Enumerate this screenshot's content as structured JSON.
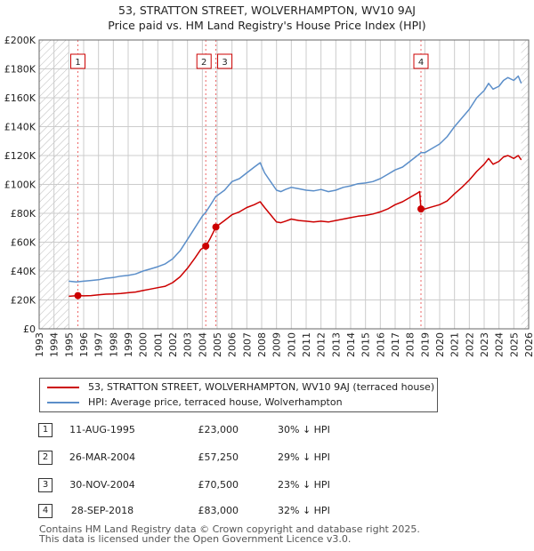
{
  "title_line1": "53, STRATTON STREET, WOLVERHAMPTON, WV10 9AJ",
  "title_line2": "Price paid vs. HM Land Registry's House Price Index (HPI)",
  "colors": {
    "property": "#cc0000",
    "hpi": "#5b8ec9",
    "marker_line": "#ee6666",
    "grid": "#cccccc",
    "hatch": "#bbbbbb"
  },
  "chart_data": {
    "type": "line",
    "xlim": [
      1993,
      2026
    ],
    "ylim": [
      0,
      200000
    ],
    "x_ticks": [
      1993,
      1994,
      1995,
      1996,
      1997,
      1998,
      1999,
      2000,
      2001,
      2002,
      2003,
      2004,
      2005,
      2006,
      2007,
      2008,
      2009,
      2010,
      2011,
      2012,
      2013,
      2014,
      2015,
      2016,
      2017,
      2018,
      2019,
      2020,
      2021,
      2022,
      2023,
      2024,
      2025,
      2026
    ],
    "y_ticks": [
      0,
      20000,
      40000,
      60000,
      80000,
      100000,
      120000,
      140000,
      160000,
      180000,
      200000
    ],
    "y_tick_labels": [
      "£0",
      "£20K",
      "£40K",
      "£60K",
      "£80K",
      "£100K",
      "£120K",
      "£140K",
      "£160K",
      "£180K",
      "£200K"
    ],
    "hatched_before": 1995,
    "hatched_after": 2025.5,
    "series": [
      {
        "name": "HPI: Average price, terraced house, Wolverhampton",
        "x": [
          1995,
          1995.5,
          1996,
          1996.5,
          1997,
          1997.5,
          1998,
          1998.5,
          1999,
          1999.5,
          2000,
          2000.5,
          2001,
          2001.5,
          2002,
          2002.5,
          2003,
          2003.5,
          2004,
          2004.25,
          2004.5,
          2004.9,
          2005.5,
          2006,
          2006.5,
          2007,
          2007.5,
          2007.9,
          2008.2,
          2008.6,
          2009,
          2009.3,
          2009.6,
          2010,
          2010.5,
          2011,
          2011.5,
          2012,
          2012.5,
          2013,
          2013.5,
          2014,
          2014.5,
          2015,
          2015.5,
          2016,
          2016.5,
          2017,
          2017.5,
          2018,
          2018.5,
          2018.74,
          2019,
          2019.5,
          2020,
          2020.5,
          2021,
          2021.5,
          2022,
          2022.5,
          2023,
          2023.3,
          2023.6,
          2024,
          2024.3,
          2024.6,
          2025,
          2025.3,
          2025.5
        ],
        "y": [
          33000,
          32500,
          33000,
          33500,
          34000,
          35000,
          35500,
          36500,
          37000,
          38000,
          40000,
          41500,
          43000,
          45000,
          48500,
          54000,
          62000,
          70000,
          78000,
          81000,
          85000,
          91500,
          96000,
          102000,
          104000,
          108000,
          112000,
          115000,
          108000,
          102000,
          96000,
          95000,
          96500,
          98000,
          97000,
          96000,
          95500,
          96500,
          95000,
          96000,
          98000,
          99000,
          100500,
          101000,
          102000,
          104000,
          107000,
          110000,
          112000,
          116000,
          120000,
          122000,
          122000,
          125000,
          128000,
          133000,
          140000,
          146000,
          152000,
          160000,
          165000,
          170000,
          166000,
          168000,
          172000,
          174000,
          172000,
          175000,
          170000
        ]
      },
      {
        "name": "53, STRATTON STREET, WOLVERHAMPTON, WV10 9AJ (terraced house)",
        "x": [
          1995,
          1995.611,
          1996,
          1996.5,
          1997,
          1997.5,
          1998,
          1998.5,
          1999,
          1999.5,
          2000,
          2000.5,
          2001,
          2001.5,
          2002,
          2002.5,
          2003,
          2003.5,
          2003.9,
          2004.233,
          2004.5,
          2004.914,
          2005.5,
          2006,
          2006.5,
          2007,
          2007.5,
          2007.9,
          2008.2,
          2008.6,
          2009,
          2009.3,
          2009.6,
          2010,
          2010.5,
          2011,
          2011.5,
          2012,
          2012.5,
          2013,
          2013.5,
          2014,
          2014.5,
          2015,
          2015.5,
          2016,
          2016.5,
          2017,
          2017.5,
          2018,
          2018.5,
          2018.65,
          2018.74,
          2019,
          2019.5,
          2020,
          2020.5,
          2021,
          2021.5,
          2022,
          2022.5,
          2023,
          2023.3,
          2023.6,
          2024,
          2024.3,
          2024.6,
          2025,
          2025.3,
          2025.5
        ],
        "y": [
          22500,
          23000,
          22800,
          23000,
          23500,
          24000,
          24200,
          24500,
          25000,
          25500,
          26500,
          27500,
          28500,
          29500,
          32000,
          36000,
          42000,
          49000,
          55000,
          57250,
          62000,
          70500,
          75000,
          79000,
          81000,
          84000,
          86000,
          88000,
          84000,
          79000,
          74000,
          73500,
          74500,
          76000,
          75000,
          74500,
          74000,
          74500,
          74000,
          75000,
          76000,
          77000,
          78000,
          78500,
          79500,
          81000,
          83000,
          86000,
          88000,
          91000,
          94000,
          95000,
          83000,
          83000,
          84500,
          86000,
          88500,
          93500,
          98000,
          103000,
          109000,
          114000,
          118000,
          114000,
          116000,
          119000,
          120000,
          118000,
          120000,
          117000
        ]
      }
    ],
    "sales": [
      {
        "label": "1",
        "date": "11-AUG-1995",
        "x": 1995.611,
        "price": 23000,
        "price_text": "£23,000",
        "hpi_text": "30% ↓ HPI"
      },
      {
        "label": "2",
        "date": "26-MAR-2004",
        "x": 2004.233,
        "price": 57250,
        "price_text": "£57,250",
        "hpi_text": "29% ↓ HPI"
      },
      {
        "label": "3",
        "date": "30-NOV-2004",
        "x": 2004.914,
        "price": 70500,
        "price_text": "£70,500",
        "hpi_text": "23% ↓ HPI"
      },
      {
        "label": "4",
        "date": "28-SEP-2018",
        "x": 2018.74,
        "price": 83000,
        "price_text": "£83,000",
        "hpi_text": "32% ↓ HPI"
      }
    ]
  },
  "footer_line1": "Contains HM Land Registry data © Crown copyright and database right 2025.",
  "footer_line2": "This data is licensed under the Open Government Licence v3.0."
}
